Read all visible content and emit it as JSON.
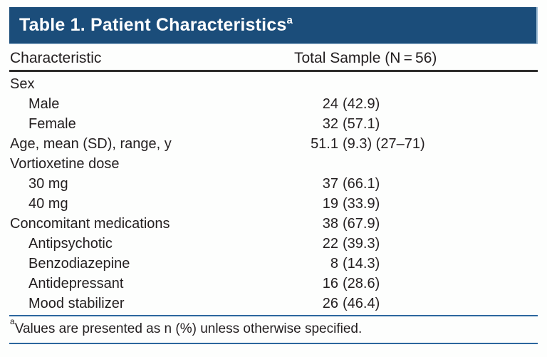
{
  "table": {
    "title": "Table 1. Patient Characteristics",
    "title_superscript": "a",
    "columns": [
      "Characteristic",
      "Total Sample (N = 56)"
    ],
    "rows": [
      {
        "label": "Sex",
        "indent": 0,
        "num": "",
        "pct": ""
      },
      {
        "label": "Male",
        "indent": 1,
        "num": "24",
        "pct": "(42.9)"
      },
      {
        "label": "Female",
        "indent": 1,
        "num": "32",
        "pct": "(57.1)"
      },
      {
        "label": "Age, mean (SD), range, y",
        "indent": 0,
        "num": "51.1",
        "pct": "(9.3) (27–71)"
      },
      {
        "label": "Vortioxetine dose",
        "indent": 0,
        "num": "",
        "pct": ""
      },
      {
        "label": "30 mg",
        "indent": 1,
        "num": "37",
        "pct": "(66.1)"
      },
      {
        "label": "40 mg",
        "indent": 1,
        "num": "19",
        "pct": "(33.9)"
      },
      {
        "label": "Concomitant medications",
        "indent": 0,
        "num": "38",
        "pct": "(67.9)"
      },
      {
        "label": "Antipsychotic",
        "indent": 1,
        "num": "22",
        "pct": "(39.3)"
      },
      {
        "label": "Benzodiazepine",
        "indent": 1,
        "num": "8",
        "pct": "(14.3)"
      },
      {
        "label": "Antidepressant",
        "indent": 1,
        "num": "16",
        "pct": "(28.6)"
      },
      {
        "label": "Mood stabilizer",
        "indent": 1,
        "num": "26",
        "pct": "(46.4)"
      }
    ],
    "footnote_superscript": "a",
    "footnote": "Values are presented as n (%) unless otherwise specified."
  },
  "colors": {
    "header_bg": "#1B4D7A",
    "header_edge": "#9DBBD3",
    "rule_dark": "#2E2D2C",
    "rule_blue": "#2C679E",
    "text": "#231F20",
    "title_text": "#FFFFFF"
  }
}
